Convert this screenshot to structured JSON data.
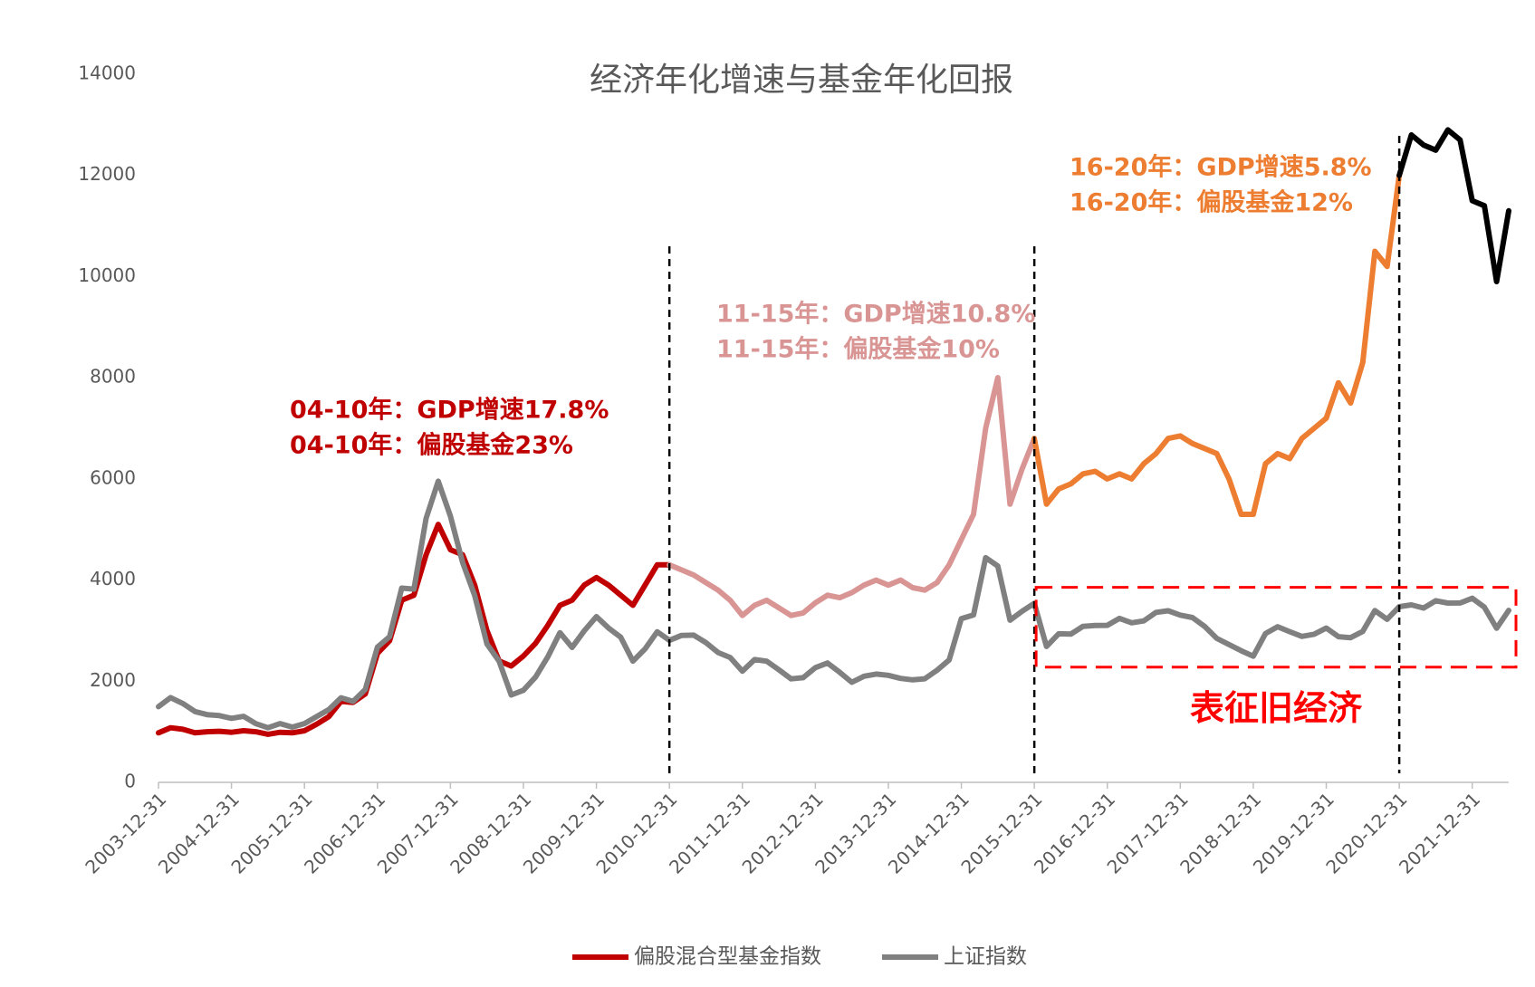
{
  "chart_data": {
    "type": "line",
    "title": "经济年化增速与基金年化回报",
    "categories": [
      "2003-12-31",
      null,
      null,
      null,
      null,
      null,
      "2004-12-31",
      null,
      null,
      null,
      null,
      null,
      "2005-12-31",
      null,
      null,
      null,
      null,
      null,
      "2006-12-31",
      null,
      null,
      null,
      null,
      null,
      "2007-12-31",
      null,
      null,
      null,
      null,
      null,
      "2008-12-31",
      null,
      null,
      null,
      null,
      null,
      "2009-12-31",
      null,
      null,
      null,
      null,
      null,
      "2010-12-31",
      null,
      null,
      null,
      null,
      null,
      "2011-12-31",
      null,
      null,
      null,
      null,
      null,
      "2012-12-31",
      null,
      null,
      null,
      null,
      null,
      "2013-12-31",
      null,
      null,
      null,
      null,
      null,
      "2014-12-31",
      null,
      null,
      null,
      null,
      null,
      "2015-12-31",
      null,
      null,
      null,
      null,
      null,
      "2016-12-31",
      null,
      null,
      null,
      null,
      null,
      "2017-12-31",
      null,
      null,
      null,
      null,
      null,
      "2018-12-31",
      null,
      null,
      null,
      null,
      null,
      "2019-12-31",
      null,
      null,
      null,
      null,
      null,
      "2020-12-31",
      null,
      null,
      null,
      null,
      null,
      "2021-12-31",
      null,
      null,
      null
    ],
    "series": [
      {
        "name": "偏股混合型基金指数",
        "color": "#c00000",
        "segments": [
          {
            "start": "2003-12-31",
            "color": "#c00000"
          },
          {
            "start": "2010-12-31",
            "color": "#d99594"
          },
          {
            "start": "2015-12-31",
            "color": "#ed7d31"
          },
          {
            "start": "2020-12-31",
            "color": "#000000"
          }
        ],
        "values": [
          980,
          1080,
          1050,
          980,
          1000,
          1010,
          990,
          1020,
          1000,
          950,
          990,
          980,
          1020,
          1150,
          1300,
          1600,
          1580,
          1750,
          2550,
          2800,
          3600,
          3700,
          4500,
          5100,
          4600,
          4500,
          3900,
          3000,
          2400,
          2300,
          2500,
          2750,
          3100,
          3500,
          3600,
          3900,
          4050,
          3900,
          3700,
          3500,
          3900,
          4300,
          4300,
          4200,
          4100,
          3950,
          3800,
          3600,
          3300,
          3500,
          3600,
          3450,
          3300,
          3350,
          3550,
          3700,
          3650,
          3750,
          3900,
          4000,
          3900,
          4000,
          3850,
          3800,
          3950,
          4300,
          4800,
          5300,
          7000,
          8000,
          5500,
          6200,
          6800,
          5500,
          5800,
          5900,
          6100,
          6150,
          6000,
          6100,
          6000,
          6300,
          6500,
          6800,
          6850,
          6700,
          6600,
          6500,
          6000,
          5300,
          5300,
          6300,
          6500,
          6400,
          6800,
          7000,
          7200,
          7900,
          7500,
          8300,
          10500,
          10200,
          12000,
          12800,
          12600,
          12500,
          12900,
          12700,
          11500,
          11400,
          9900,
          11300
        ]
      },
      {
        "name": "上证指数",
        "color": "#808080",
        "values": [
          1497,
          1675,
          1560,
          1400,
          1340,
          1320,
          1266,
          1306,
          1160,
          1080,
          1162,
          1092,
          1161,
          1299,
          1440,
          1672,
          1601,
          1837,
          2675,
          2881,
          3841,
          3820,
          5218,
          5955,
          5261,
          4348,
          3693,
          2736,
          2397,
          1728,
          1820,
          2082,
          2477,
          2959,
          2667,
          2995,
          3277,
          3051,
          2870,
          2398,
          2638,
          2978,
          2808,
          2905,
          2911,
          2762,
          2567,
          2468,
          2199,
          2428,
          2396,
          2225,
          2047,
          2069,
          2269,
          2359,
          2177,
          1979,
          2098,
          2141,
          2116,
          2056,
          2026,
          2048,
          2217,
          2420,
          3235,
          3310,
          4441,
          4277,
          3206,
          3383,
          3539,
          2688,
          2938,
          2930,
          3085,
          3100,
          3104,
          3242,
          3155,
          3192,
          3361,
          3393,
          3307,
          3259,
          3082,
          2847,
          2725,
          2603,
          2494,
          2941,
          3078,
          2979,
          2886,
          2929,
          3050,
          2880,
          2860,
          2985,
          3396,
          3225,
          3473,
          3509,
          3447,
          3591,
          3544,
          3547,
          3640,
          3462,
          3047,
          3399
        ]
      }
    ],
    "ylim": [
      0,
      14000
    ],
    "yticks": [
      0,
      2000,
      4000,
      6000,
      8000,
      10000,
      12000,
      14000
    ],
    "grid": false,
    "annotations": [
      {
        "lines": [
          "04-10年：GDP增速17.8%",
          "04-10年：偏股基金23%"
        ],
        "color": "#c00000"
      },
      {
        "lines": [
          "11-15年：GDP增速10.8%",
          "11-15年：偏股基金10%"
        ],
        "color": "#d99594"
      },
      {
        "lines": [
          "16-20年：GDP增速5.8%",
          "16-20年：偏股基金12%"
        ],
        "color": "#ed7d31"
      }
    ],
    "box_label": {
      "text": "表征旧经济",
      "color": "#ff0000"
    },
    "legend": "bottom"
  }
}
